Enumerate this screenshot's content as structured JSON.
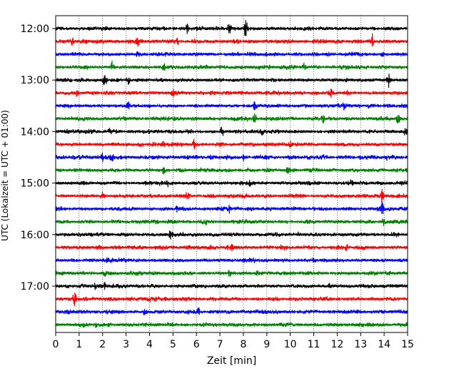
{
  "chart_data": {
    "type": "line",
    "title": "",
    "xlabel": "Zeit  [min]",
    "ylabel": "UTC (Lokalzeit = UTC + 01:00)",
    "xlim": [
      0,
      15
    ],
    "x_ticks": [
      "0",
      "1",
      "2",
      "3",
      "4",
      "5",
      "6",
      "7",
      "8",
      "9",
      "10",
      "11",
      "12",
      "13",
      "14",
      "15"
    ],
    "y_ticks": [
      "12:00",
      "13:00",
      "14:00",
      "15:00",
      "16:00",
      "17:00"
    ],
    "grid": "vertical-dotted",
    "colors_cycle": [
      "#000000",
      "#ff0000",
      "#0000ff",
      "#008000"
    ],
    "start_time": "12:00",
    "trace_interval_min": 15,
    "traces": [
      {
        "time": "12:00",
        "color": "#000000",
        "spikes": [
          [
            5.6,
            7
          ],
          [
            7.4,
            10
          ],
          [
            8.1,
            14
          ]
        ]
      },
      {
        "time": "12:15",
        "color": "#ff0000",
        "spikes": [
          [
            0.7,
            6
          ],
          [
            3.5,
            7
          ],
          [
            5.2,
            5
          ],
          [
            13.5,
            10
          ]
        ]
      },
      {
        "time": "12:30",
        "color": "#0000ff",
        "spikes": [
          [
            3.5,
            5
          ],
          [
            11.6,
            5
          ],
          [
            13.9,
            5
          ]
        ]
      },
      {
        "time": "12:45",
        "color": "#008000",
        "spikes": [
          [
            2.4,
            8
          ],
          [
            4.6,
            6
          ],
          [
            10.6,
            8
          ]
        ]
      },
      {
        "time": "13:00",
        "color": "#000000",
        "spikes": [
          [
            2.1,
            10
          ],
          [
            3.1,
            6
          ],
          [
            14.2,
            12
          ]
        ]
      },
      {
        "time": "13:15",
        "color": "#ff0000",
        "spikes": [
          [
            5.0,
            7
          ],
          [
            11.7,
            8
          ],
          [
            0.9,
            5
          ]
        ]
      },
      {
        "time": "13:30",
        "color": "#0000ff",
        "spikes": [
          [
            3.1,
            5
          ],
          [
            8.5,
            8
          ],
          [
            12.3,
            6
          ]
        ]
      },
      {
        "time": "13:45",
        "color": "#008000",
        "spikes": [
          [
            8.5,
            10
          ],
          [
            11.4,
            6
          ],
          [
            14.6,
            7
          ]
        ]
      },
      {
        "time": "14:00",
        "color": "#000000",
        "spikes": [
          [
            2.3,
            6
          ],
          [
            7.1,
            8
          ],
          [
            8.8,
            5
          ],
          [
            14.9,
            6
          ]
        ]
      },
      {
        "time": "14:15",
        "color": "#ff0000",
        "spikes": [
          [
            4.6,
            6
          ],
          [
            5.9,
            9
          ],
          [
            10.0,
            5
          ]
        ]
      },
      {
        "time": "14:30",
        "color": "#0000ff",
        "spikes": [
          [
            2.0,
            6
          ],
          [
            2.4,
            9
          ],
          [
            8.0,
            5
          ],
          [
            14.1,
            5
          ]
        ]
      },
      {
        "time": "14:45",
        "color": "#008000",
        "spikes": [
          [
            4.6,
            5
          ],
          [
            9.9,
            7
          ]
        ]
      },
      {
        "time": "15:00",
        "color": "#000000",
        "spikes": [
          [
            4.8,
            6
          ],
          [
            8.3,
            5
          ],
          [
            12.6,
            5
          ]
        ]
      },
      {
        "time": "15:15",
        "color": "#ff0000",
        "spikes": [
          [
            2.0,
            6
          ],
          [
            5.6,
            7
          ],
          [
            13.9,
            9
          ]
        ]
      },
      {
        "time": "15:30",
        "color": "#0000ff",
        "spikes": [
          [
            5.2,
            6
          ],
          [
            7.4,
            6
          ],
          [
            13.9,
            11
          ]
        ]
      },
      {
        "time": "15:45",
        "color": "#008000",
        "spikes": [
          [
            6.4,
            5
          ],
          [
            14.0,
            6
          ]
        ]
      },
      {
        "time": "16:00",
        "color": "#000000",
        "spikes": [
          [
            4.9,
            7
          ],
          [
            10.4,
            6
          ]
        ]
      },
      {
        "time": "16:15",
        "color": "#ff0000",
        "spikes": [
          [
            7.5,
            5
          ],
          [
            12.4,
            5
          ]
        ]
      },
      {
        "time": "16:30",
        "color": "#0000ff",
        "spikes": [
          [
            2.2,
            4
          ],
          [
            11.0,
            4
          ]
        ]
      },
      {
        "time": "16:45",
        "color": "#008000",
        "spikes": [
          [
            2.1,
            5
          ],
          [
            7.4,
            5
          ]
        ]
      },
      {
        "time": "17:00",
        "color": "#000000",
        "spikes": [
          [
            1.7,
            5
          ],
          [
            2.1,
            5
          ],
          [
            11.7,
            4
          ]
        ]
      },
      {
        "time": "17:15",
        "color": "#ff0000",
        "spikes": [
          [
            0.8,
            10
          ],
          [
            4.0,
            4
          ]
        ]
      },
      {
        "time": "17:30",
        "color": "#0000ff",
        "spikes": [
          [
            3.8,
            5
          ],
          [
            6.1,
            7
          ]
        ]
      },
      {
        "time": "17:45",
        "color": "#008000",
        "spikes": [
          [
            1.2,
            4
          ],
          [
            1.7,
            4
          ]
        ]
      }
    ]
  }
}
